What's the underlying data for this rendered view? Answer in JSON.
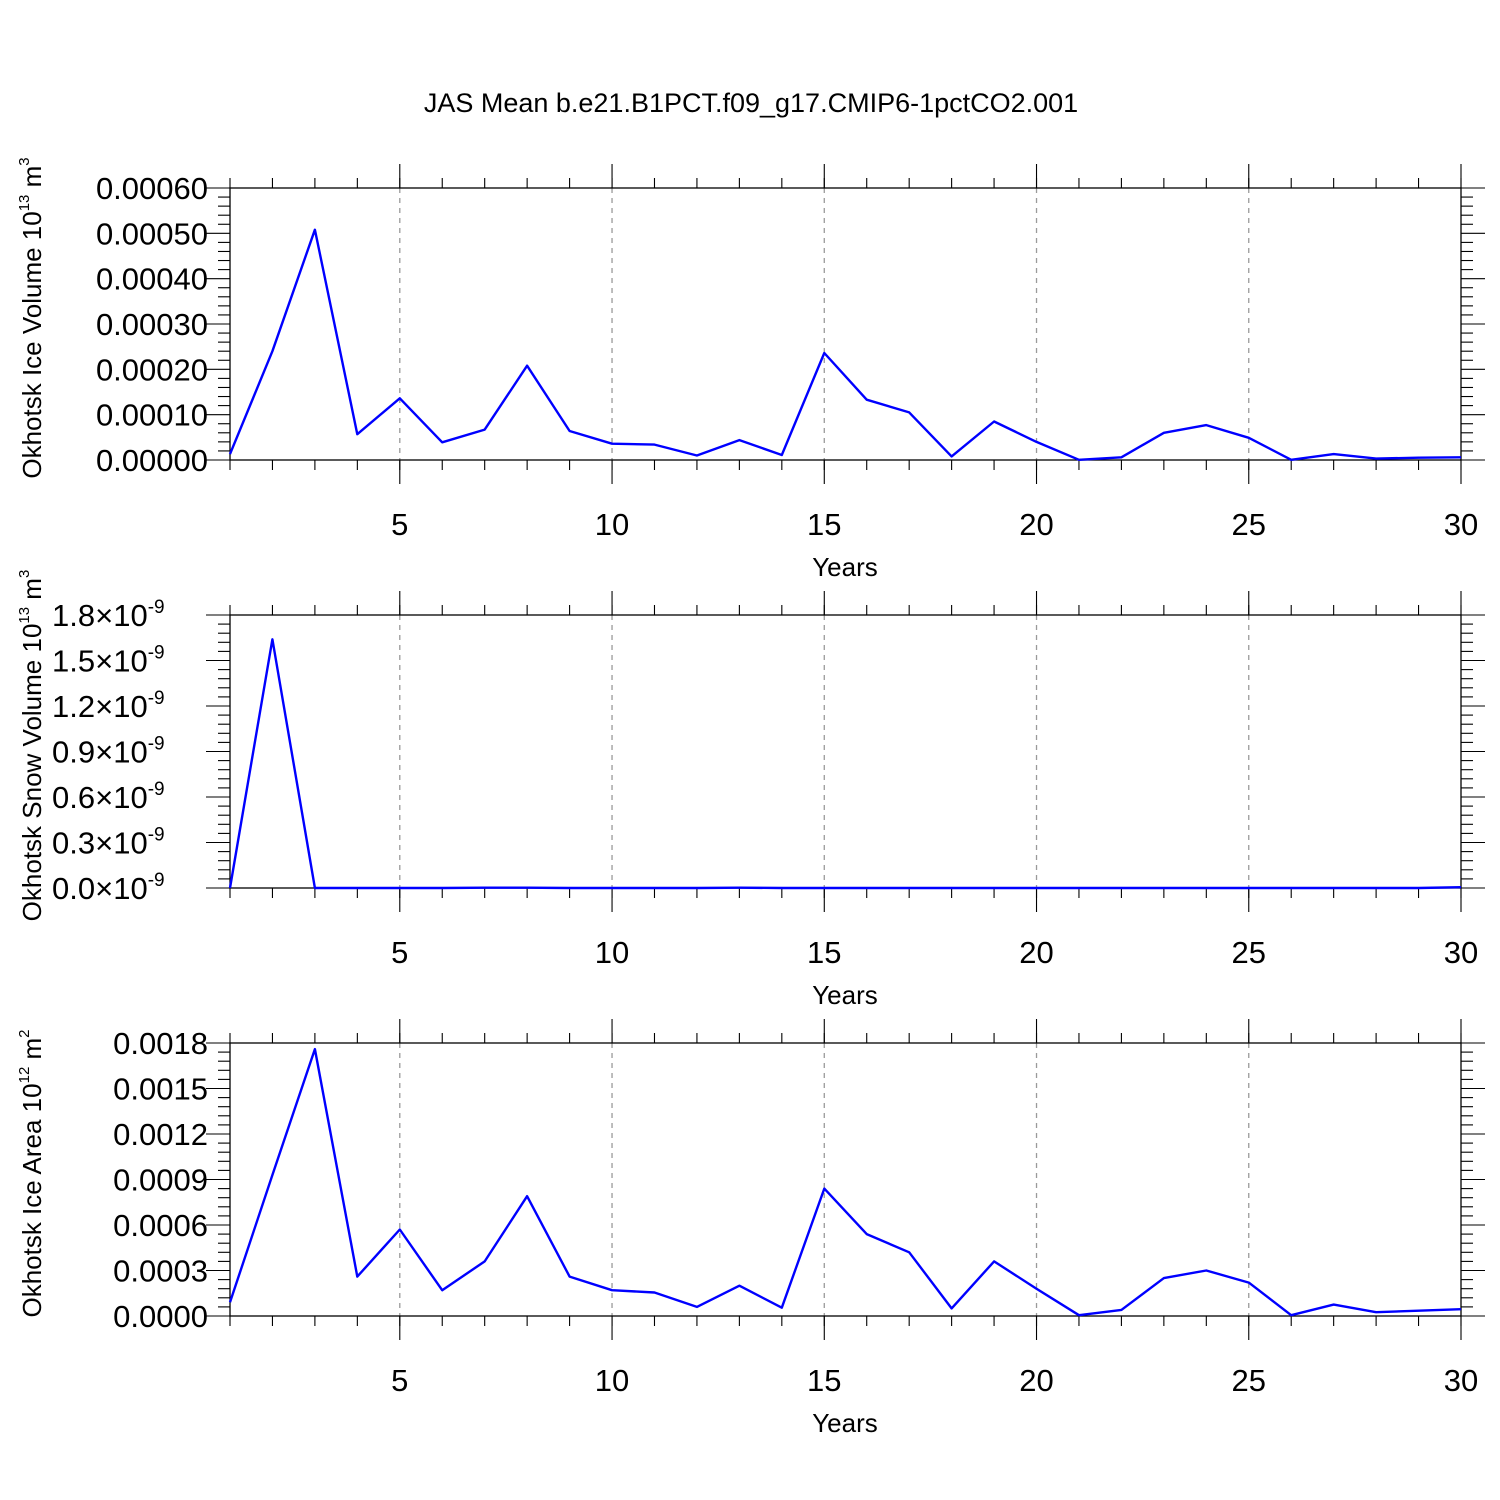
{
  "title": "JAS Mean b.e21.B1PCT.f09_g17.CMIP6-1pctCO2.001",
  "chart_data": [
    {
      "type": "line",
      "xlabel": "Years",
      "ylabel": "Okhotsk Ice Volume 10",
      "ylabel_exp": "13",
      "ylabel_unit": "m",
      "ylabel_unit_exp": "3",
      "xlim": [
        1,
        30
      ],
      "ylim": [
        0,
        0.0006
      ],
      "xticks": [
        5,
        10,
        15,
        20,
        25,
        30
      ],
      "xtick_labels": [
        "5",
        "10",
        "15",
        "20",
        "25",
        "30"
      ],
      "yticks": [
        0,
        0.0001,
        0.0002,
        0.0003,
        0.0004,
        0.0005,
        0.0006
      ],
      "ytick_labels": [
        "0.00000",
        "0.00010",
        "0.00020",
        "0.00030",
        "0.00040",
        "0.00050",
        "0.00060"
      ],
      "grid_x": true,
      "color": "#0000ff",
      "x": [
        1,
        2,
        3,
        4,
        5,
        6,
        7,
        8,
        9,
        10,
        11,
        12,
        13,
        14,
        15,
        16,
        17,
        18,
        19,
        20,
        21,
        22,
        23,
        24,
        25,
        26,
        27,
        28,
        29,
        30
      ],
      "values": [
        1.3e-05,
        0.00024,
        0.000508,
        5.7e-05,
        0.000136,
        3.9e-05,
        6.7e-05,
        0.000208,
        6.4e-05,
        3.6e-05,
        3.4e-05,
        1e-05,
        4.4e-05,
        1.1e-05,
        0.000236,
        0.000133,
        0.000105,
        8e-06,
        8.5e-05,
        4e-05,
        5e-07,
        6e-06,
        6e-05,
        7.7e-05,
        4.9e-05,
        5e-07,
        1.3e-05,
        3e-06,
        5e-06,
        6e-06
      ]
    },
    {
      "type": "line",
      "xlabel": "Years",
      "ylabel": "Okhotsk Snow Volume 10",
      "ylabel_exp": "13",
      "ylabel_unit": "m",
      "ylabel_unit_exp": "3",
      "xlim": [
        1,
        30
      ],
      "ylim": [
        0,
        1.8e-09
      ],
      "xticks": [
        5,
        10,
        15,
        20,
        25,
        30
      ],
      "xtick_labels": [
        "5",
        "10",
        "15",
        "20",
        "25",
        "30"
      ],
      "yticks": [
        0,
        3e-10,
        6e-10,
        9e-10,
        1.2e-09,
        1.5e-09,
        1.8e-09
      ],
      "ytick_mantissas": [
        "0.0",
        "0.3",
        "0.6",
        "0.9",
        "1.2",
        "1.5",
        "1.8"
      ],
      "ytick_times": "×10",
      "ytick_exp": "-9",
      "grid_x": true,
      "color": "#0000ff",
      "x": [
        1,
        2,
        3,
        4,
        5,
        6,
        7,
        8,
        9,
        10,
        11,
        12,
        13,
        14,
        15,
        16,
        17,
        18,
        19,
        20,
        21,
        22,
        23,
        24,
        25,
        26,
        27,
        28,
        29,
        30
      ],
      "values": [
        0,
        1.64e-09,
        0,
        0,
        0,
        0,
        2e-12,
        2e-12,
        0,
        0,
        0,
        0,
        2e-12,
        0,
        0,
        0,
        0,
        0,
        0,
        0,
        0,
        0,
        0,
        0,
        0,
        0,
        0,
        0,
        0,
        5e-12
      ]
    },
    {
      "type": "line",
      "xlabel": "Years",
      "ylabel": "Okhotsk Ice Area 10",
      "ylabel_exp": "12",
      "ylabel_unit": "m",
      "ylabel_unit_exp": "2",
      "xlim": [
        1,
        30
      ],
      "ylim": [
        0,
        0.0018
      ],
      "xticks": [
        5,
        10,
        15,
        20,
        25,
        30
      ],
      "xtick_labels": [
        "5",
        "10",
        "15",
        "20",
        "25",
        "30"
      ],
      "yticks": [
        0,
        0.0003,
        0.0006,
        0.0009,
        0.0012,
        0.0015,
        0.0018
      ],
      "ytick_labels": [
        "0.0000",
        "0.0003",
        "0.0006",
        "0.0009",
        "0.0012",
        "0.0015",
        "0.0018"
      ],
      "grid_x": true,
      "color": "#0000ff",
      "x": [
        1,
        2,
        3,
        4,
        5,
        6,
        7,
        8,
        9,
        10,
        11,
        12,
        13,
        14,
        15,
        16,
        17,
        18,
        19,
        20,
        21,
        22,
        23,
        24,
        25,
        26,
        27,
        28,
        29,
        30
      ],
      "values": [
        9e-05,
        0.00093,
        0.00176,
        0.00026,
        0.00057,
        0.00017,
        0.00036,
        0.00079,
        0.00026,
        0.00017,
        0.000155,
        6e-05,
        0.0002,
        5.5e-05,
        0.00084,
        0.00054,
        0.00042,
        5e-05,
        0.00036,
        0.00018,
        5e-06,
        4e-05,
        0.00025,
        0.0003,
        0.00022,
        5e-06,
        7.5e-05,
        2.5e-05,
        3.5e-05,
        4.5e-05
      ]
    }
  ]
}
